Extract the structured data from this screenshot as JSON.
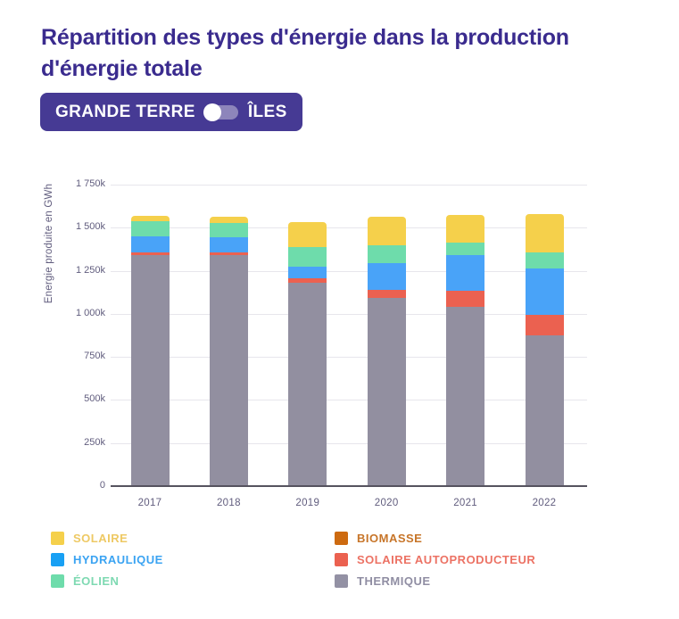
{
  "title": "Répartition des types d'énergie dans la production d'énergie totale",
  "toggle": {
    "left_label": "GRANDE TERRE",
    "right_label": "ÎLES",
    "selected": "GRANDE TERRE"
  },
  "colors": {
    "title_text": "#3a2b8e",
    "toggle_background": "#463a94",
    "toggle_track": "#8d85bb",
    "toggle_knob": "#ffffff",
    "axis_text": "#615d7e",
    "gridline": "#e7e6ec",
    "axis_line": "#56535f",
    "background": "#ffffff"
  },
  "chart_data": {
    "type": "bar",
    "stacked": true,
    "title": "",
    "y_axis_label": "Energie produite en GWh",
    "value_unit": "k GWh",
    "ylim": [
      0,
      1750
    ],
    "grid": true,
    "legend_position": "bottom",
    "categories": [
      "2017",
      "2018",
      "2019",
      "2020",
      "2021",
      "2022"
    ],
    "stack_order": "bottom-to-top",
    "series": [
      {
        "name": "THERMIQUE",
        "color": "#928fa0",
        "values": [
          1340,
          1340,
          1180,
          1090,
          1040,
          876
        ]
      },
      {
        "name": "SOLAIRE AUTOPRODUCTEUR",
        "color": "#eb6150",
        "values": [
          14,
          15,
          25,
          47,
          94,
          120
        ]
      },
      {
        "name": "BIOMASSE",
        "color": "#cd6a10",
        "values": [
          0,
          0,
          0,
          0,
          0,
          0
        ]
      },
      {
        "name": "HYDRAULIQUE",
        "color": "#49a3f8",
        "values": [
          95,
          90,
          70,
          156,
          206,
          267
        ]
      },
      {
        "name": "ÉOLIEN",
        "color": "#6edcab",
        "values": [
          88,
          80,
          115,
          103,
          72,
          91
        ]
      },
      {
        "name": "SOLAIRE",
        "color": "#f5d04b",
        "values": [
          33,
          40,
          140,
          168,
          160,
          227
        ]
      }
    ],
    "y_ticks": [
      {
        "value": 0,
        "label": "0"
      },
      {
        "value": 250,
        "label": "250k"
      },
      {
        "value": 500,
        "label": "500k"
      },
      {
        "value": 750,
        "label": "750k"
      },
      {
        "value": 1000,
        "label": "1 000k"
      },
      {
        "value": 1250,
        "label": "1 250k"
      },
      {
        "value": 1500,
        "label": "1 500k"
      },
      {
        "value": 1750,
        "label": "1 750k"
      }
    ],
    "legend_columns": [
      [
        {
          "label": "SOLAIRE",
          "color": "#f5d04b",
          "text_color": "#eec964"
        },
        {
          "label": "HYDRAULIQUE",
          "color": "#18a0f4",
          "text_color": "#3aa3f2"
        },
        {
          "label": "ÉOLIEN",
          "color": "#6edcab",
          "text_color": "#7ed9b2"
        }
      ],
      [
        {
          "label": "BIOMASSE",
          "color": "#cd6a10",
          "text_color": "#c77529"
        },
        {
          "label": "SOLAIRE AUTOPRODUCTEUR",
          "color": "#eb6150",
          "text_color": "#ec7264"
        },
        {
          "label": "THERMIQUE",
          "color": "#9391a4",
          "text_color": "#908ea3"
        }
      ]
    ]
  }
}
